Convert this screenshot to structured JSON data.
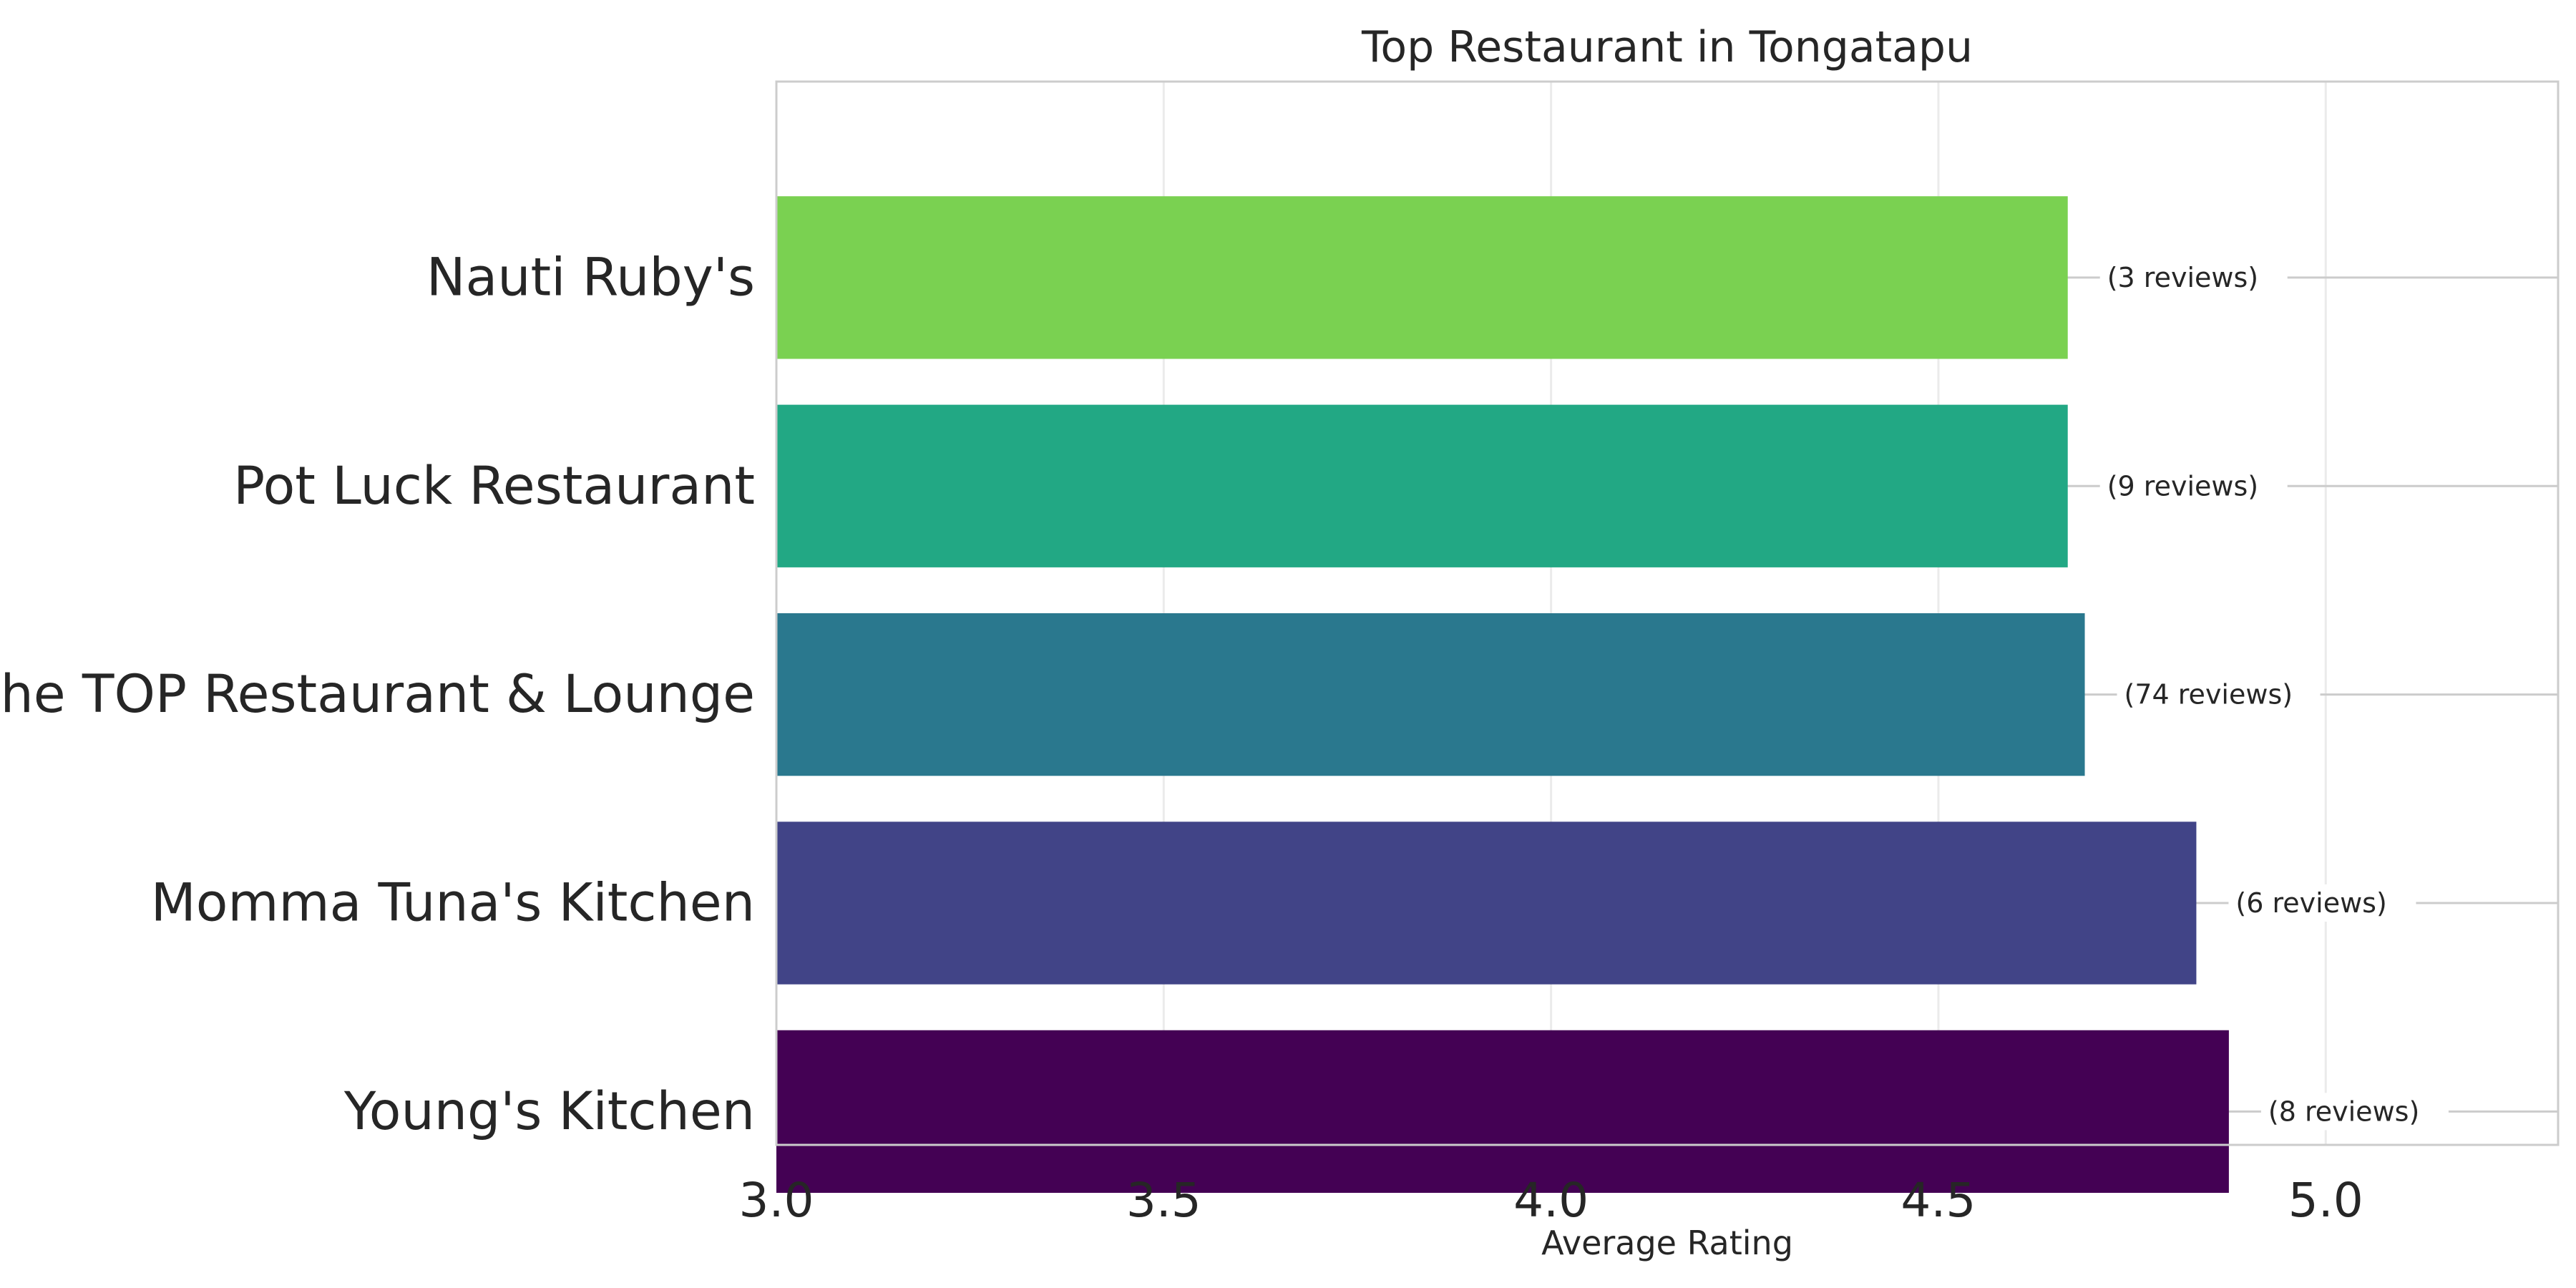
{
  "chart_data": {
    "type": "bar",
    "orientation": "horizontal",
    "title": "Top Restaurant in Tongatapu",
    "xlabel": "Average Rating",
    "ylabel": "",
    "xlim": [
      3.0,
      5.3
    ],
    "xticks": [
      "3.0",
      "3.5",
      "4.0",
      "4.5",
      "5.0"
    ],
    "grid": true,
    "categories": [
      "Young's Kitchen",
      "Momma Tuna's Kitchen",
      "the TOP Restaurant & Lounge",
      "Pot Luck Restaurant",
      "Nauti Ruby's"
    ],
    "values": [
      4.875,
      4.833,
      4.689,
      4.667,
      4.667
    ],
    "annotations": [
      "(8 reviews)",
      "(6 reviews)",
      "(74 reviews)",
      "(9 reviews)",
      "(3 reviews)"
    ],
    "colors": [
      "#440154",
      "#414487",
      "#2a788e",
      "#22a884",
      "#7ad151"
    ]
  }
}
